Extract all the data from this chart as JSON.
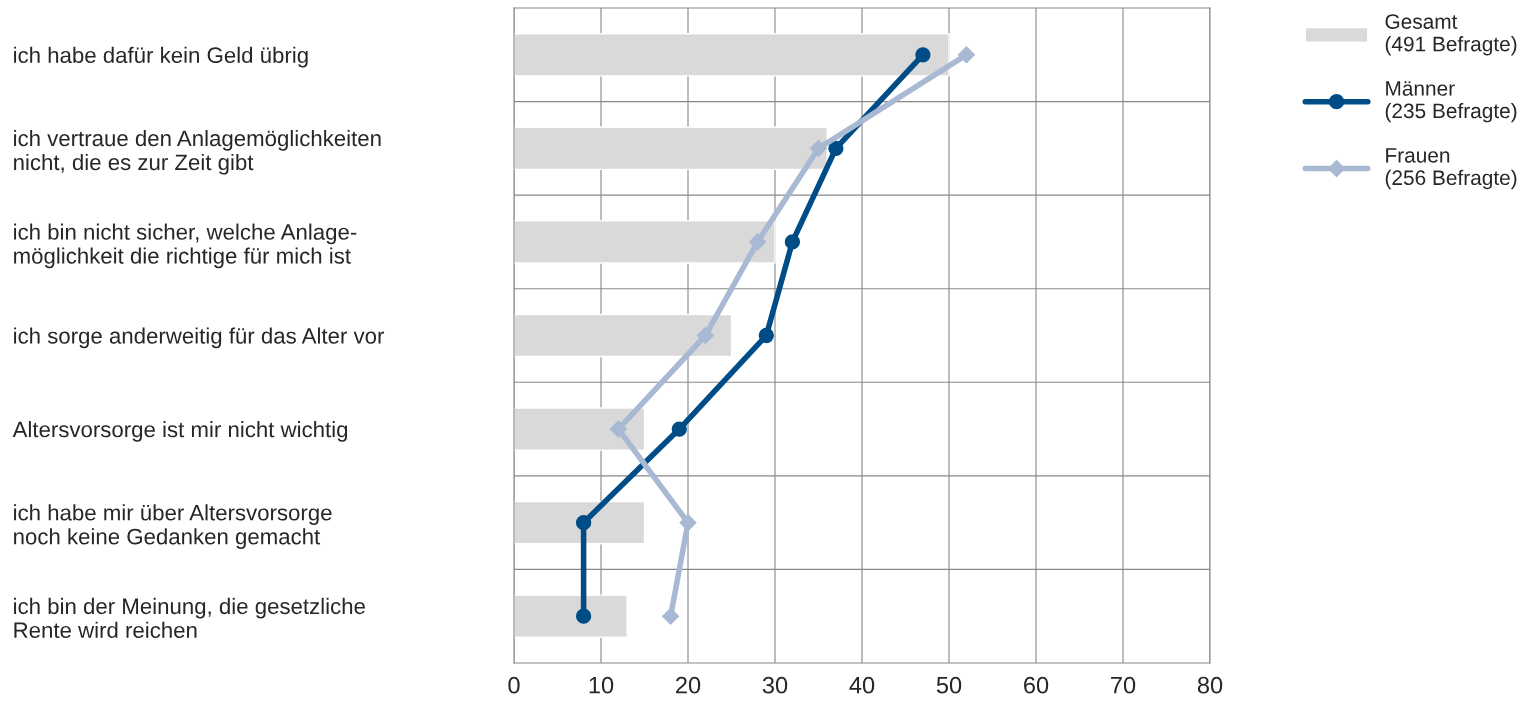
{
  "chart_data": {
    "type": "bar",
    "orientation": "horizontal",
    "categories": [
      "ich habe dafür kein Geld übrig",
      "ich vertraue den Anlagemöglichkeiten\nnicht, die es zur Zeit gibt",
      "ich bin nicht sicher, welche Anlage-\nmöglichkeit die richtige für mich ist",
      "ich sorge anderweitig für das Alter vor",
      "Altersvorsorge ist mir nicht wichtig",
      "ich habe mir über Altersvorsorge\nnoch keine Gedanken gemacht",
      "ich bin der Meinung, die gesetzliche\nRente wird reichen"
    ],
    "series": [
      {
        "name": "Gesamt\n(491 Befragte)",
        "color": "#d9d9d9",
        "values": [
          50,
          36,
          30,
          25,
          15,
          15,
          13
        ]
      },
      {
        "name": "Männer\n(235 Befragte)",
        "type": "line",
        "marker": "circle",
        "color": "#004c86",
        "values": [
          47,
          37,
          32,
          29,
          19,
          8,
          8
        ]
      },
      {
        "name": "Frauen\n(256 Befragte)",
        "type": "line",
        "marker": "diamond",
        "color": "#a9b9d3",
        "values": [
          52,
          35,
          28,
          22,
          12,
          20,
          18
        ]
      }
    ],
    "xlim": [
      0,
      80
    ],
    "xticks": [
      0,
      10,
      20,
      30,
      40,
      50,
      60,
      70,
      80
    ],
    "grid": true,
    "legend": "top right"
  }
}
